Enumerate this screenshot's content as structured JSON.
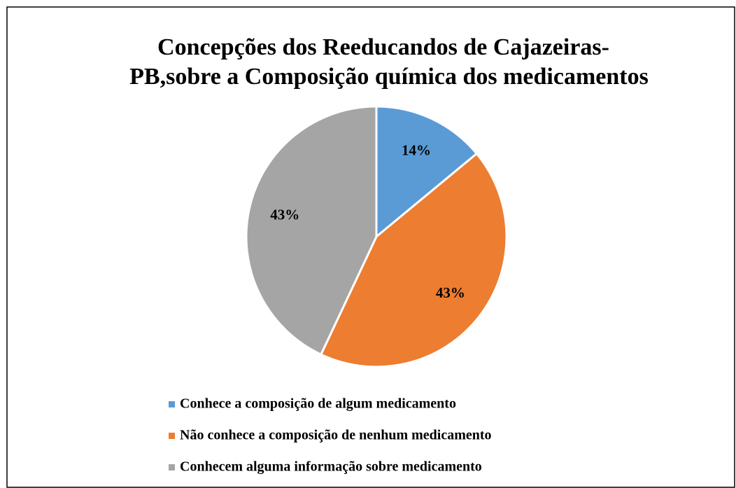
{
  "chart_data": {
    "type": "pie",
    "title": [
      "Concepções  dos Reeducandos  de Cajazeiras-",
      "PB,sobre a Composição química dos medicamentos"
    ],
    "categories": [
      "Conhece a composição de algum medicamento",
      "Não conhece a composição de nenhum medicamento",
      "Conhecem alguma informação sobre medicamento"
    ],
    "values": [
      14,
      43,
      43
    ],
    "value_labels": [
      "14%",
      "43%",
      "43%"
    ],
    "colors": [
      "#5b9bd5",
      "#ed7d31",
      "#a5a5a5"
    ],
    "legend": "bottom"
  }
}
